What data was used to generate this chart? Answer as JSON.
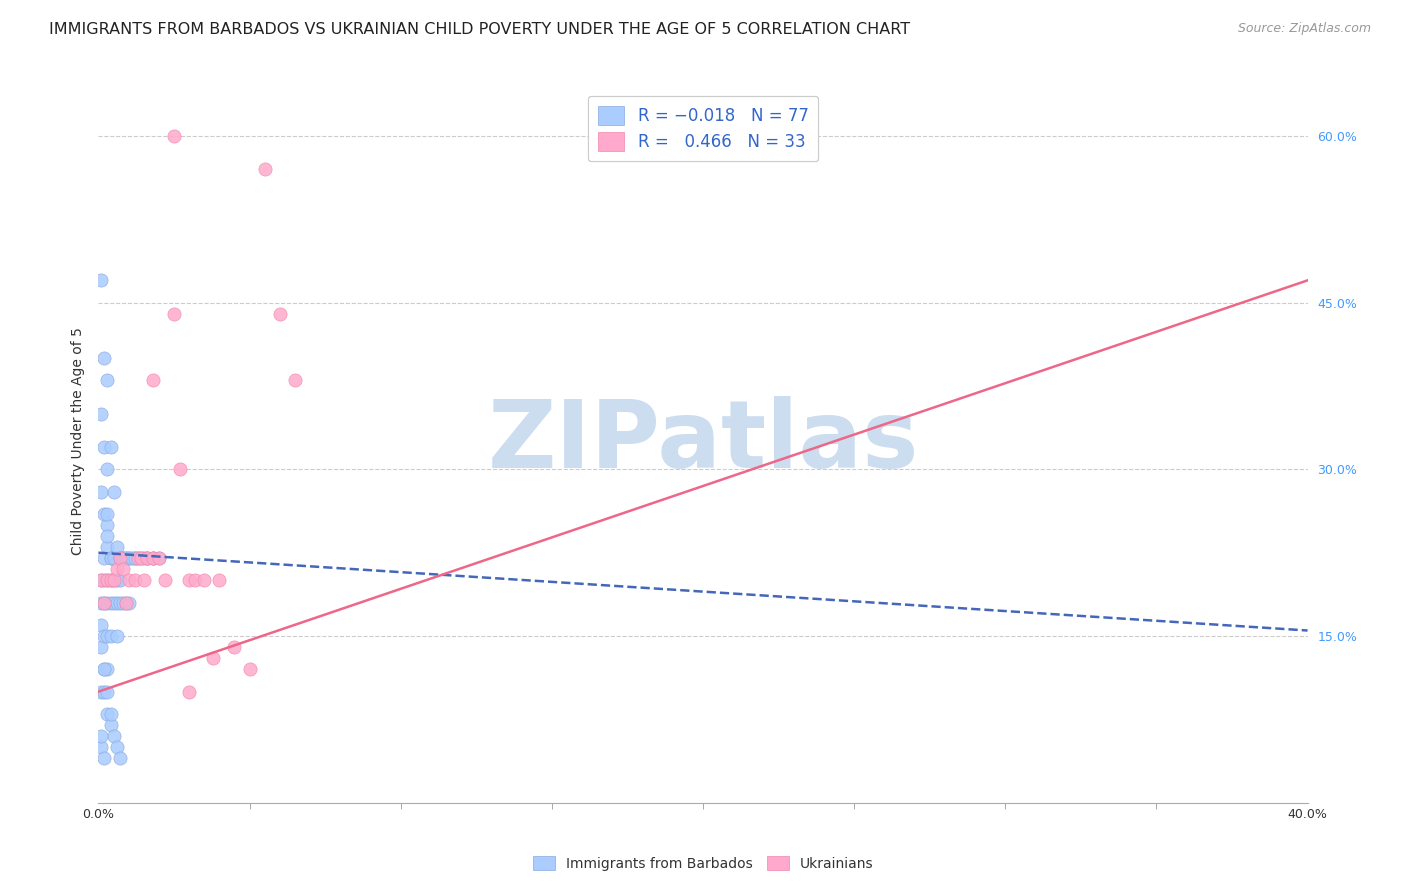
{
  "title": "IMMIGRANTS FROM BARBADOS VS UKRAINIAN CHILD POVERTY UNDER THE AGE OF 5 CORRELATION CHART",
  "source": "Source: ZipAtlas.com",
  "ylabel": "Child Poverty Under the Age of 5",
  "ytick_labels": [
    "60.0%",
    "45.0%",
    "30.0%",
    "15.0%"
  ],
  "ytick_values": [
    0.6,
    0.45,
    0.3,
    0.15
  ],
  "legend_label_blue": "Immigrants from Barbados",
  "legend_label_pink": "Ukrainians",
  "blue_color": "#aaccff",
  "pink_color": "#ffaacc",
  "blue_edge_color": "#88aadd",
  "pink_edge_color": "#ee88aa",
  "blue_line_color": "#4466bb",
  "pink_line_color": "#ee6688",
  "blue_scatter_x": [
    0.001,
    0.001,
    0.001,
    0.001,
    0.001,
    0.001,
    0.002,
    0.002,
    0.002,
    0.002,
    0.002,
    0.003,
    0.003,
    0.003,
    0.003,
    0.003,
    0.003,
    0.004,
    0.004,
    0.004,
    0.004,
    0.005,
    0.005,
    0.005,
    0.006,
    0.006,
    0.006,
    0.006,
    0.007,
    0.007,
    0.007,
    0.008,
    0.008,
    0.009,
    0.009,
    0.01,
    0.01,
    0.012,
    0.013,
    0.015,
    0.016,
    0.018,
    0.02,
    0.001,
    0.001,
    0.002,
    0.002,
    0.003,
    0.003,
    0.004,
    0.005,
    0.006,
    0.007,
    0.008,
    0.009,
    0.01,
    0.011,
    0.012,
    0.014,
    0.016,
    0.018,
    0.002,
    0.003,
    0.004,
    0.005,
    0.006,
    0.007,
    0.001,
    0.002,
    0.003,
    0.004,
    0.005,
    0.003,
    0.002,
    0.003,
    0.004,
    0.001,
    0.002
  ],
  "blue_scatter_y": [
    0.2,
    0.18,
    0.16,
    0.14,
    0.1,
    0.05,
    0.22,
    0.2,
    0.18,
    0.15,
    0.12,
    0.25,
    0.23,
    0.2,
    0.18,
    0.15,
    0.12,
    0.22,
    0.2,
    0.18,
    0.15,
    0.22,
    0.2,
    0.18,
    0.22,
    0.2,
    0.18,
    0.15,
    0.22,
    0.2,
    0.18,
    0.22,
    0.18,
    0.22,
    0.18,
    0.22,
    0.18,
    0.22,
    0.22,
    0.22,
    0.22,
    0.22,
    0.22,
    0.35,
    0.28,
    0.32,
    0.26,
    0.3,
    0.24,
    0.22,
    0.22,
    0.23,
    0.22,
    0.22,
    0.22,
    0.22,
    0.22,
    0.22,
    0.22,
    0.22,
    0.22,
    0.1,
    0.08,
    0.07,
    0.06,
    0.05,
    0.04,
    0.47,
    0.4,
    0.38,
    0.32,
    0.28,
    0.26,
    0.12,
    0.1,
    0.08,
    0.06,
    0.04
  ],
  "pink_scatter_x": [
    0.001,
    0.002,
    0.003,
    0.004,
    0.005,
    0.006,
    0.007,
    0.008,
    0.009,
    0.01,
    0.012,
    0.013,
    0.014,
    0.015,
    0.016,
    0.018,
    0.02,
    0.022,
    0.025,
    0.027,
    0.03,
    0.032,
    0.035,
    0.038,
    0.04,
    0.045,
    0.05,
    0.055,
    0.06,
    0.065,
    0.018,
    0.025,
    0.03
  ],
  "pink_scatter_y": [
    0.2,
    0.18,
    0.2,
    0.2,
    0.2,
    0.21,
    0.22,
    0.21,
    0.18,
    0.2,
    0.2,
    0.22,
    0.22,
    0.2,
    0.22,
    0.22,
    0.22,
    0.2,
    0.44,
    0.3,
    0.2,
    0.2,
    0.2,
    0.13,
    0.2,
    0.14,
    0.12,
    0.57,
    0.44,
    0.38,
    0.38,
    0.6,
    0.1
  ],
  "blue_trend_x": [
    0.0,
    0.4
  ],
  "blue_trend_y": [
    0.225,
    0.155
  ],
  "pink_trend_x": [
    0.0,
    0.4
  ],
  "pink_trend_y": [
    0.1,
    0.47
  ],
  "xlim": [
    0.0,
    0.4
  ],
  "ylim": [
    0.0,
    0.65
  ],
  "watermark_text": "ZIPatlas",
  "watermark_color": "#ccddf0",
  "title_fontsize": 11.5,
  "source_fontsize": 9,
  "label_fontsize": 10,
  "tick_fontsize": 9
}
